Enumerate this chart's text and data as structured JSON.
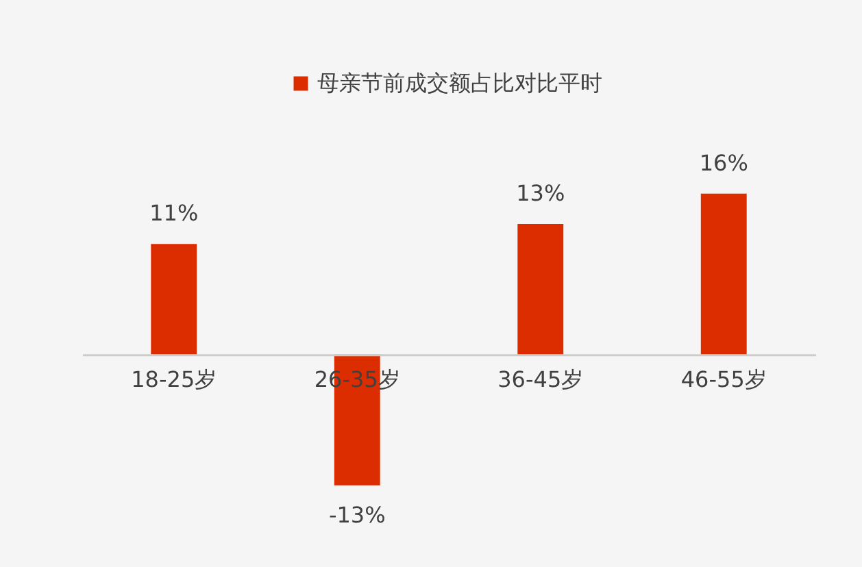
{
  "chart_data": {
    "type": "bar",
    "categories": [
      "18-25岁",
      "26-35岁",
      "36-45岁",
      "46-55岁"
    ],
    "series": [
      {
        "name": "母亲节前成交额占比对比平时",
        "color": "#dc2d00",
        "values": [
          11,
          -13,
          13,
          16
        ],
        "value_labels": [
          "11%",
          "-13%",
          "13%",
          "16%"
        ]
      }
    ],
    "legend": "top",
    "tick_labels": "x"
  }
}
